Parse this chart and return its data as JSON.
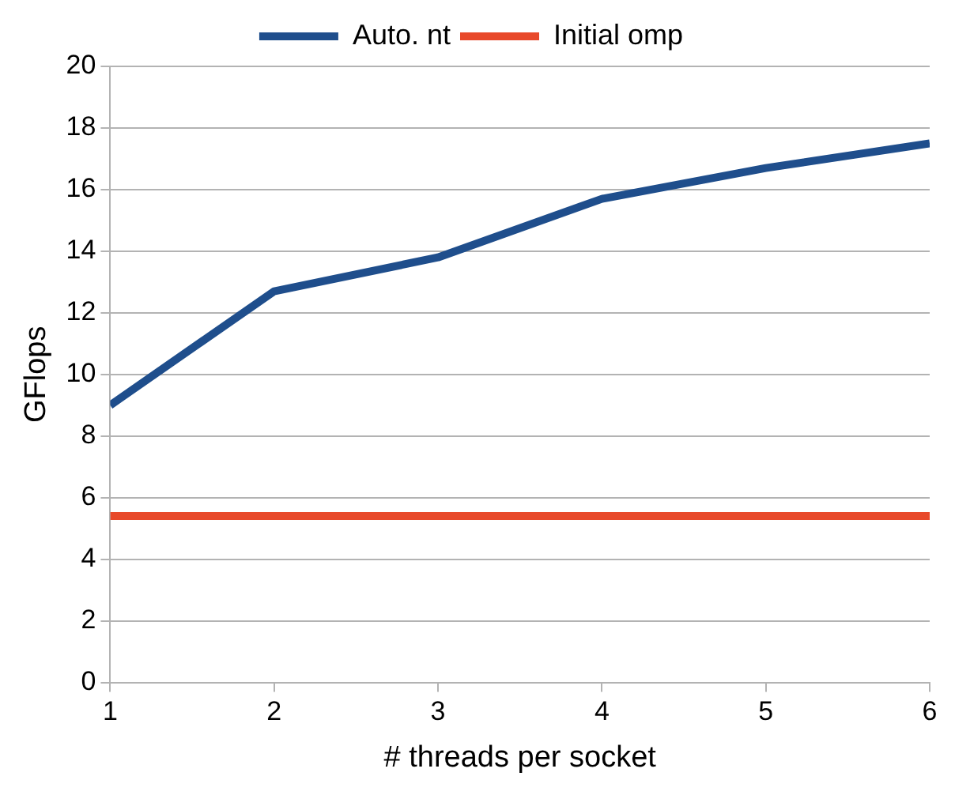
{
  "chart_data": {
    "type": "line",
    "xlabel": "# threads per socket",
    "ylabel": "GFlops",
    "x": [
      1,
      2,
      3,
      4,
      5,
      6
    ],
    "series": [
      {
        "name": "Auto. nt",
        "color": "#1f4e8c",
        "values": [
          9.0,
          12.7,
          13.8,
          15.7,
          16.7,
          17.5
        ]
      },
      {
        "name": "Initial omp",
        "color": "#e8492a",
        "values": [
          5.4,
          5.4,
          5.4,
          5.4,
          5.4,
          5.4
        ]
      }
    ],
    "xlim": [
      1,
      6
    ],
    "xticks": [
      1,
      2,
      3,
      4,
      5,
      6
    ],
    "ylim": [
      0,
      20
    ],
    "yticks": [
      0,
      2,
      4,
      6,
      8,
      10,
      12,
      14,
      16,
      18,
      20
    ],
    "grid": "y",
    "legend": "top"
  }
}
